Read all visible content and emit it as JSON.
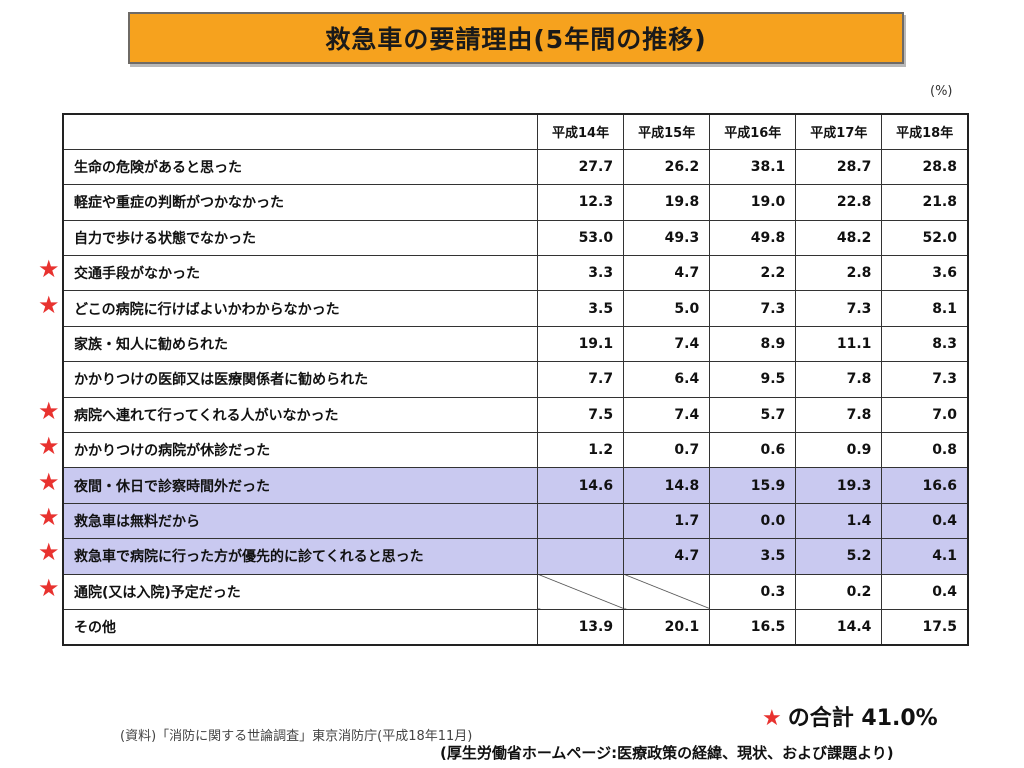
{
  "title": "救急車の要請理由(5年間の推移)",
  "unit": "(%)",
  "columns": [
    "平成14年",
    "平成15年",
    "平成16年",
    "平成17年",
    "平成18年"
  ],
  "rows": [
    {
      "label": "生命の危険があると思った",
      "values": [
        "27.7",
        "26.2",
        "38.1",
        "28.7",
        "28.8"
      ],
      "starred": false,
      "highlight": false
    },
    {
      "label": "軽症や重症の判断がつかなかった",
      "values": [
        "12.3",
        "19.8",
        "19.0",
        "22.8",
        "21.8"
      ],
      "starred": false,
      "highlight": false
    },
    {
      "label": "自力で歩ける状態でなかった",
      "values": [
        "53.0",
        "49.3",
        "49.8",
        "48.2",
        "52.0"
      ],
      "starred": false,
      "highlight": false
    },
    {
      "label": "交通手段がなかった",
      "values": [
        "3.3",
        "4.7",
        "2.2",
        "2.8",
        "3.6"
      ],
      "starred": true,
      "highlight": false
    },
    {
      "label": "どこの病院に行けばよいかわからなかった",
      "values": [
        "3.5",
        "5.0",
        "7.3",
        "7.3",
        "8.1"
      ],
      "starred": true,
      "highlight": false
    },
    {
      "label": "家族・知人に勧められた",
      "values": [
        "19.1",
        "7.4",
        "8.9",
        "11.1",
        "8.3"
      ],
      "starred": false,
      "highlight": false
    },
    {
      "label": "かかりつけの医師又は医療関係者に勧められた",
      "values": [
        "7.7",
        "6.4",
        "9.5",
        "7.8",
        "7.3"
      ],
      "starred": false,
      "highlight": false
    },
    {
      "label": "病院へ連れて行ってくれる人がいなかった",
      "values": [
        "7.5",
        "7.4",
        "5.7",
        "7.8",
        "7.0"
      ],
      "starred": true,
      "highlight": false
    },
    {
      "label": "かかりつけの病院が休診だった",
      "values": [
        "1.2",
        "0.7",
        "0.6",
        "0.9",
        "0.8"
      ],
      "starred": true,
      "highlight": false
    },
    {
      "label": "夜間・休日で診察時間外だった",
      "values": [
        "14.6",
        "14.8",
        "15.9",
        "19.3",
        "16.6"
      ],
      "starred": true,
      "highlight": true
    },
    {
      "label": "救急車は無料だから",
      "values": [
        null,
        "1.7",
        "0.0",
        "1.4",
        "0.4"
      ],
      "starred": true,
      "highlight": true
    },
    {
      "label": "救急車で病院に行った方が優先的に診てくれると思った",
      "values": [
        null,
        "4.7",
        "3.5",
        "5.2",
        "4.1"
      ],
      "starred": true,
      "highlight": true
    },
    {
      "label": "通院(又は入院)予定だった",
      "values": [
        null,
        null,
        "0.3",
        "0.2",
        "0.4"
      ],
      "starred": true,
      "highlight": false
    },
    {
      "label": "その他",
      "values": [
        "13.9",
        "20.1",
        "16.5",
        "14.4",
        "17.5"
      ],
      "starred": false,
      "highlight": false
    }
  ],
  "star_symbol": "★",
  "total": {
    "text": "の合計 41.0%"
  },
  "source": "(資料)「消防に関する世論調査」東京消防庁(平成18年11月)",
  "credit": "(厚生労働省ホームページ:医療政策の経緯、現状、および課題より)",
  "colors": {
    "title_bg": "#f6a21e",
    "highlight": "#c9c9f0",
    "star": "#e8322f"
  }
}
